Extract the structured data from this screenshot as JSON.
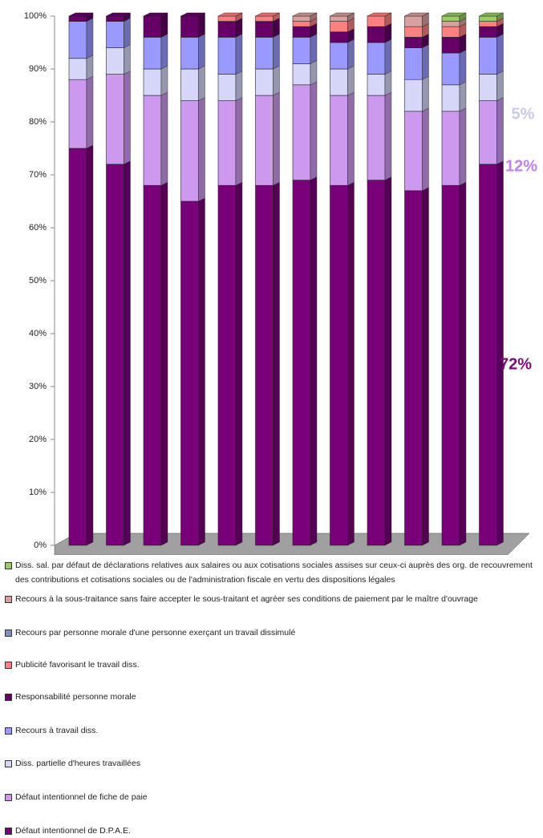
{
  "chart_data": {
    "type": "stacked-bar-3d",
    "categories": [
      null,
      null,
      null,
      null,
      null,
      null,
      null,
      null,
      null,
      null,
      null,
      null
    ],
    "ylim": [
      0,
      100
    ],
    "yticks": [
      {
        "value": 0,
        "label": "0%"
      },
      {
        "value": 10,
        "label": "10%"
      },
      {
        "value": 20,
        "label": "20%"
      },
      {
        "value": 30,
        "label": "30%"
      },
      {
        "value": 40,
        "label": "40%"
      },
      {
        "value": 50,
        "label": "50%"
      },
      {
        "value": 60,
        "label": "60%"
      },
      {
        "value": 70,
        "label": "70%"
      },
      {
        "value": 80,
        "label": "80%"
      },
      {
        "value": 90,
        "label": "90%"
      },
      {
        "value": 100,
        "label": "100%"
      }
    ],
    "series": [
      {
        "name": "Défaut intentionnel de D.P.A.E.",
        "color": "#7a007a",
        "values": [
          75,
          72,
          68,
          65,
          68,
          68,
          69,
          68,
          69,
          67,
          68,
          72
        ]
      },
      {
        "name": "Défaut intentionnel de fiche de paie",
        "color": "#cc99ee",
        "values": [
          13,
          17,
          17,
          19,
          16,
          17,
          18,
          17,
          16,
          15,
          14,
          12
        ]
      },
      {
        "name": "Diss. partielle d'heures travaillées",
        "color": "#d6d6f8",
        "values": [
          4,
          5,
          5,
          6,
          5,
          5,
          4,
          5,
          4,
          6,
          5,
          5
        ]
      },
      {
        "name": "Recours à travail diss.",
        "color": "#9999ff",
        "values": [
          7,
          5,
          6,
          6,
          7,
          6,
          5,
          5,
          6,
          6,
          6,
          7
        ]
      },
      {
        "name": "Responsabilité personne morale",
        "color": "#660066",
        "values": [
          1,
          1,
          4,
          4,
          3,
          3,
          2,
          2,
          3,
          2,
          3,
          2
        ]
      },
      {
        "name": "Publicité favorisant le travail diss.",
        "color": "#ff8080",
        "values": [
          0,
          0,
          0,
          0,
          1,
          1,
          1,
          2,
          2,
          2,
          2,
          1
        ]
      },
      {
        "name": "Recours par personne morale d'une personne exerçant un travail dissimulé",
        "color": "#7f8fbf",
        "values": [
          0,
          0,
          0,
          0,
          0,
          0,
          0,
          0,
          0,
          0,
          0,
          0
        ]
      },
      {
        "name": "Recours à la sous-traitance sans faire accepter le sous-traitant et agréer ses conditions de paiement par le maître d'ouvrage",
        "color": "#d9a0a0",
        "values": [
          0,
          0,
          0,
          0,
          0,
          0,
          1,
          1,
          0,
          2,
          1,
          0
        ]
      },
      {
        "name": "Diss. sal. par défaut de déclarations relatives aux salaires ou aux cotisations sociales assises sur ceux-ci auprès des org. de recouvrement des contributions et cotisations sociales ou de l'administration fiscale en vertu des dispositions légales",
        "color": "#99cc66",
        "values": [
          0,
          0,
          0,
          0,
          0,
          0,
          0,
          0,
          0,
          0,
          1,
          1
        ]
      }
    ],
    "annotations": [
      {
        "text": "5%",
        "color": "#c8c8f0"
      },
      {
        "text": "12%",
        "color": "#c080ee"
      },
      {
        "text": "72%",
        "color": "#7a0a7a"
      }
    ]
  }
}
